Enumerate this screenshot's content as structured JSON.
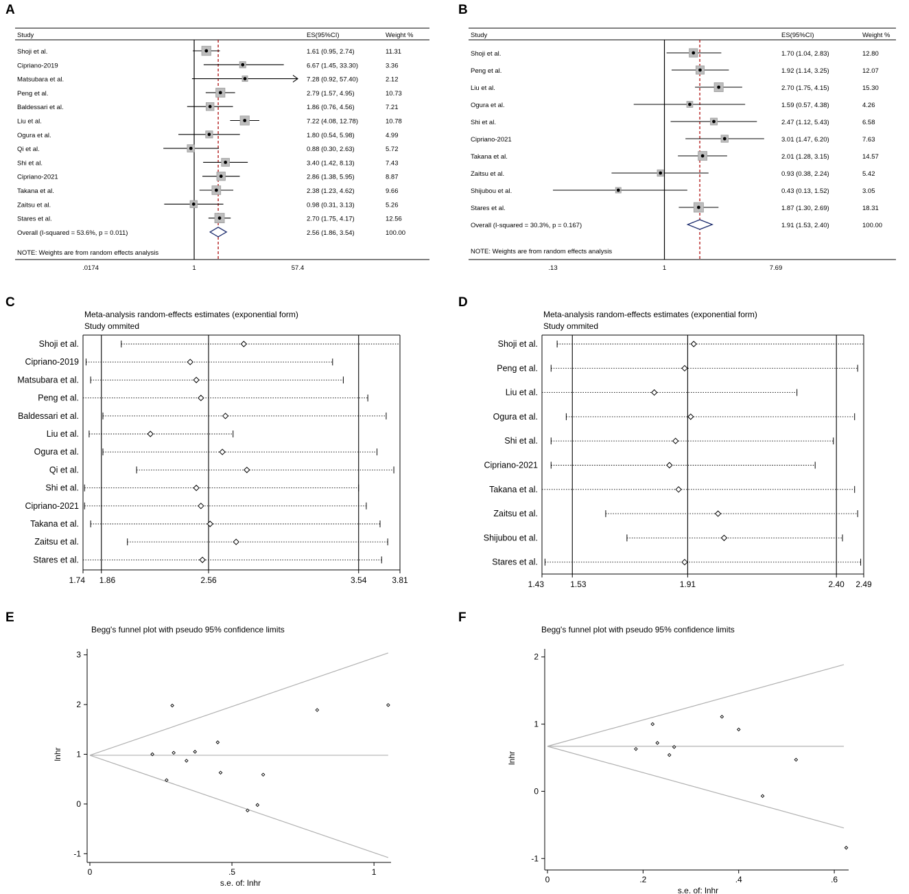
{
  "chart_data": [
    {
      "panel": "A",
      "type": "forest",
      "headers": {
        "study": "Study",
        "es": "ES(95%CI)",
        "weight": "Weight %"
      },
      "axis_ticks": [
        ".0174",
        "1",
        "57.4"
      ],
      "axis_range_log": [
        0.0174,
        57.4
      ],
      "overall_es": 2.56,
      "studies": [
        {
          "name": "Shoji et al.",
          "es": 1.61,
          "lo": 0.95,
          "hi": 2.74,
          "es_text": "1.61 (0.95, 2.74)",
          "weight": "11.31"
        },
        {
          "name": "Cipriano-2019",
          "es": 6.67,
          "lo": 1.45,
          "hi": 33.3,
          "es_text": "6.67 (1.45, 33.30)",
          "weight": "3.36"
        },
        {
          "name": "Matsubara et al.",
          "es": 7.28,
          "lo": 0.92,
          "hi": 57.4,
          "es_text": "7.28 (0.92, 57.40)",
          "weight": "2.12"
        },
        {
          "name": "Peng et al.",
          "es": 2.79,
          "lo": 1.57,
          "hi": 4.95,
          "es_text": "2.79 (1.57, 4.95)",
          "weight": "10.73"
        },
        {
          "name": "Baldessari et al.",
          "es": 1.86,
          "lo": 0.76,
          "hi": 4.56,
          "es_text": "1.86 (0.76, 4.56)",
          "weight": "7.21"
        },
        {
          "name": "Liu et al.",
          "es": 7.22,
          "lo": 4.08,
          "hi": 12.78,
          "es_text": "7.22 (4.08, 12.78)",
          "weight": "10.78"
        },
        {
          "name": "Ogura et al.",
          "es": 1.8,
          "lo": 0.54,
          "hi": 5.98,
          "es_text": "1.80 (0.54, 5.98)",
          "weight": "4.99"
        },
        {
          "name": "Qi et al.",
          "es": 0.88,
          "lo": 0.3,
          "hi": 2.63,
          "es_text": "0.88 (0.30, 2.63)",
          "weight": "5.72"
        },
        {
          "name": "Shi et al.",
          "es": 3.4,
          "lo": 1.42,
          "hi": 8.13,
          "es_text": "3.40 (1.42, 8.13)",
          "weight": "7.43"
        },
        {
          "name": "Cipriano-2021",
          "es": 2.86,
          "lo": 1.38,
          "hi": 5.95,
          "es_text": "2.86 (1.38, 5.95)",
          "weight": "8.87"
        },
        {
          "name": "Takana et al.",
          "es": 2.38,
          "lo": 1.23,
          "hi": 4.62,
          "es_text": "2.38 (1.23, 4.62)",
          "weight": "9.66"
        },
        {
          "name": "Zaitsu et al.",
          "es": 0.98,
          "lo": 0.31,
          "hi": 3.13,
          "es_text": "0.98 (0.31, 3.13)",
          "weight": "5.26"
        },
        {
          "name": "Stares et al.",
          "es": 2.7,
          "lo": 1.75,
          "hi": 4.17,
          "es_text": "2.70 (1.75, 4.17)",
          "weight": "12.56"
        }
      ],
      "overall": {
        "label": "Overall  (I-squared = 53.6%, p = 0.011)",
        "es": 2.56,
        "lo": 1.86,
        "hi": 3.54,
        "es_text": "2.56 (1.86, 3.54)",
        "weight": "100.00"
      },
      "note": "NOTE: Weights are from random effects analysis"
    },
    {
      "panel": "B",
      "type": "forest",
      "headers": {
        "study": "Study",
        "es": "ES(95%CI)",
        "weight": "Weight %"
      },
      "axis_ticks": [
        ".13",
        "1",
        "7.69"
      ],
      "axis_range_log": [
        0.13,
        7.69
      ],
      "overall_es": 1.91,
      "studies": [
        {
          "name": "Shoji et al.",
          "es": 1.7,
          "lo": 1.04,
          "hi": 2.83,
          "es_text": "1.70 (1.04, 2.83)",
          "weight": "12.80"
        },
        {
          "name": "Peng et al.",
          "es": 1.92,
          "lo": 1.14,
          "hi": 3.25,
          "es_text": "1.92 (1.14, 3.25)",
          "weight": "12.07"
        },
        {
          "name": "Liu et al.",
          "es": 2.7,
          "lo": 1.75,
          "hi": 4.15,
          "es_text": "2.70 (1.75, 4.15)",
          "weight": "15.30"
        },
        {
          "name": "Ogura et al.",
          "es": 1.59,
          "lo": 0.57,
          "hi": 4.38,
          "es_text": "1.59 (0.57, 4.38)",
          "weight": "4.26"
        },
        {
          "name": "Shi et al.",
          "es": 2.47,
          "lo": 1.12,
          "hi": 5.43,
          "es_text": "2.47 (1.12, 5.43)",
          "weight": "6.58"
        },
        {
          "name": "Cipriano-2021",
          "es": 3.01,
          "lo": 1.47,
          "hi": 6.2,
          "es_text": "3.01 (1.47, 6.20)",
          "weight": "7.63"
        },
        {
          "name": "Takana et al.",
          "es": 2.01,
          "lo": 1.28,
          "hi": 3.15,
          "es_text": "2.01 (1.28, 3.15)",
          "weight": "14.57"
        },
        {
          "name": "Zaitsu et al.",
          "es": 0.93,
          "lo": 0.38,
          "hi": 2.24,
          "es_text": "0.93 (0.38, 2.24)",
          "weight": "5.42"
        },
        {
          "name": "Shijubou et al.",
          "es": 0.43,
          "lo": 0.13,
          "hi": 1.52,
          "es_text": "0.43 (0.13, 1.52)",
          "weight": "3.05"
        },
        {
          "name": "Stares et al.",
          "es": 1.87,
          "lo": 1.3,
          "hi": 2.69,
          "es_text": "1.87 (1.30, 2.69)",
          "weight": "18.31"
        }
      ],
      "overall": {
        "label": "Overall  (I-squared = 30.3%, p = 0.167)",
        "es": 1.91,
        "lo": 1.53,
        "hi": 2.4,
        "es_text": "1.91 (1.53, 2.40)",
        "weight": "100.00"
      },
      "note": "NOTE: Weights are from random effects analysis"
    },
    {
      "panel": "C",
      "type": "sensitivity",
      "title": "Meta-analysis random-effects estimates (exponential form)",
      "subtitle": "Study ommited",
      "axis_range": [
        1.74,
        3.81
      ],
      "ref_lines": [
        1.86,
        2.56,
        3.54
      ],
      "ticks": [
        {
          "v": 1.74,
          "label": "1.74"
        },
        {
          "v": 1.86,
          "label": "1.86"
        },
        {
          "v": 2.56,
          "label": "2.56"
        },
        {
          "v": 3.54,
          "label": "3.54"
        },
        {
          "v": 3.81,
          "label": "3.81"
        }
      ],
      "rows": [
        {
          "name": "Shoji et al.",
          "est": 2.79,
          "lo": 1.99,
          "hi": 3.81
        },
        {
          "name": "Cipriano-2019",
          "est": 2.44,
          "lo": 1.76,
          "hi": 3.37
        },
        {
          "name": "Matsubara et al.",
          "est": 2.48,
          "lo": 1.79,
          "hi": 3.44
        },
        {
          "name": "Peng et al.",
          "est": 2.51,
          "lo": 1.74,
          "hi": 3.6
        },
        {
          "name": "Baldessari et al.",
          "est": 2.67,
          "lo": 1.87,
          "hi": 3.72
        },
        {
          "name": "Liu et al.",
          "est": 2.18,
          "lo": 1.78,
          "hi": 2.72
        },
        {
          "name": "Ogura et al.",
          "est": 2.65,
          "lo": 1.87,
          "hi": 3.66
        },
        {
          "name": "Qi et al.",
          "est": 2.81,
          "lo": 2.09,
          "hi": 3.77
        },
        {
          "name": "Shi et al.",
          "est": 2.48,
          "lo": 1.75,
          "hi": 3.54
        },
        {
          "name": "Cipriano-2021",
          "est": 2.51,
          "lo": 1.75,
          "hi": 3.59
        },
        {
          "name": "Takana et al.",
          "est": 2.57,
          "lo": 1.79,
          "hi": 3.68
        },
        {
          "name": "Zaitsu et al.",
          "est": 2.74,
          "lo": 2.03,
          "hi": 3.73
        },
        {
          "name": "Stares et al.",
          "est": 2.52,
          "lo": 1.74,
          "hi": 3.69
        }
      ]
    },
    {
      "panel": "D",
      "type": "sensitivity",
      "title": "Meta-analysis random-effects estimates (exponential form)",
      "subtitle": "Study ommited",
      "axis_range": [
        1.43,
        2.49
      ],
      "ref_lines": [
        1.53,
        1.91,
        2.4
      ],
      "ticks": [
        {
          "v": 1.43,
          "label": "1.43"
        },
        {
          "v": 1.53,
          "label": "1.53"
        },
        {
          "v": 1.91,
          "label": "1.91"
        },
        {
          "v": 2.4,
          "label": "2.40"
        },
        {
          "v": 2.49,
          "label": "2.49"
        }
      ],
      "rows": [
        {
          "name": "Shoji et al.",
          "est": 1.93,
          "lo": 1.48,
          "hi": 2.49
        },
        {
          "name": "Peng et al.",
          "est": 1.9,
          "lo": 1.46,
          "hi": 2.47
        },
        {
          "name": "Liu et al.",
          "est": 1.8,
          "lo": 1.43,
          "hi": 2.27
        },
        {
          "name": "Ogura et al.",
          "est": 1.92,
          "lo": 1.51,
          "hi": 2.46
        },
        {
          "name": "Shi et al.",
          "est": 1.87,
          "lo": 1.46,
          "hi": 2.39
        },
        {
          "name": "Cipriano-2021",
          "est": 1.85,
          "lo": 1.46,
          "hi": 2.33
        },
        {
          "name": "Takana et al.",
          "est": 1.88,
          "lo": 1.43,
          "hi": 2.46
        },
        {
          "name": "Zaitsu et al.",
          "est": 2.01,
          "lo": 1.64,
          "hi": 2.47
        },
        {
          "name": "Shijubou et al.",
          "est": 2.03,
          "lo": 1.71,
          "hi": 2.42
        },
        {
          "name": "Stares et al.",
          "est": 1.9,
          "lo": 1.44,
          "hi": 2.48
        }
      ]
    },
    {
      "panel": "E",
      "type": "scatter",
      "title": "Begg's funnel plot with pseudo 95% confidence limits",
      "xlabel": "s.e. of: lnhr",
      "ylabel": "lnhr",
      "xlim": [
        0,
        1.06
      ],
      "ylim": [
        -1.12,
        3.12
      ],
      "xticks": [
        {
          "v": 0,
          "label": "0"
        },
        {
          "v": 0.5,
          "label": ".5"
        },
        {
          "v": 1,
          "label": "1"
        }
      ],
      "yticks": [
        {
          "v": -1,
          "label": "-1"
        },
        {
          "v": 0,
          "label": "0"
        },
        {
          "v": 1,
          "label": "1"
        },
        {
          "v": 2,
          "label": "2"
        },
        {
          "v": 3,
          "label": "3"
        }
      ],
      "pooled": 0.98,
      "limit_se_max": 1.05,
      "points": [
        [
          0.22,
          1.0
        ],
        [
          0.27,
          0.48
        ],
        [
          0.29,
          1.98
        ],
        [
          0.295,
          1.03
        ],
        [
          0.34,
          0.87
        ],
        [
          0.37,
          1.05
        ],
        [
          0.45,
          1.24
        ],
        [
          0.46,
          0.63
        ],
        [
          0.555,
          -0.13
        ],
        [
          0.59,
          -0.02
        ],
        [
          0.61,
          0.59
        ],
        [
          0.8,
          1.89
        ],
        [
          1.05,
          1.99
        ]
      ]
    },
    {
      "panel": "F",
      "type": "scatter",
      "title": "Begg's funnel plot with pseudo 95% confidence limits",
      "xlabel": "s.e. of: lnhr",
      "ylabel": "lnhr",
      "xlim": [
        0,
        0.63
      ],
      "ylim": [
        -1.13,
        2.12
      ],
      "xticks": [
        {
          "v": 0,
          "label": "0"
        },
        {
          "v": 0.2,
          "label": ".2"
        },
        {
          "v": 0.4,
          "label": ".4"
        },
        {
          "v": 0.6,
          "label": ".6"
        }
      ],
      "yticks": [
        {
          "v": -1,
          "label": "-1"
        },
        {
          "v": 0,
          "label": "0"
        },
        {
          "v": 1,
          "label": "1"
        },
        {
          "v": 2,
          "label": "2"
        }
      ],
      "pooled": 0.67,
      "limit_se_max": 0.62,
      "points": [
        [
          0.185,
          0.63
        ],
        [
          0.22,
          1.0
        ],
        [
          0.23,
          0.72
        ],
        [
          0.255,
          0.54
        ],
        [
          0.265,
          0.66
        ],
        [
          0.365,
          1.11
        ],
        [
          0.4,
          0.92
        ],
        [
          0.45,
          -0.07
        ],
        [
          0.52,
          0.47
        ],
        [
          0.625,
          -0.84
        ]
      ]
    }
  ]
}
